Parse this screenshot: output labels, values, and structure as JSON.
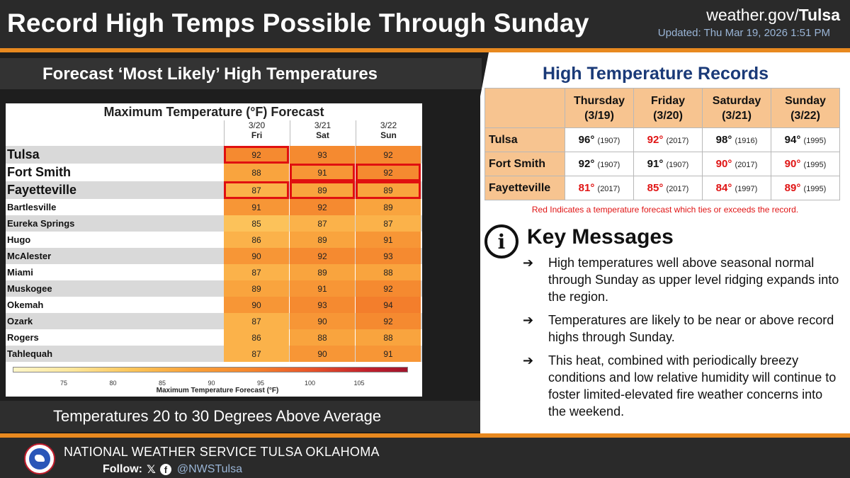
{
  "header": {
    "title": "Record High Temps Possible Through Sunday",
    "site_prefix": "weather.gov/",
    "site_office": "Tulsa",
    "updated": "Updated: Thu Mar 19, 2026 1:51 PM",
    "accent_color": "#e8891f"
  },
  "left": {
    "subtitle": "Forecast ‘Most Likely’ High Temperatures",
    "bottom_text": "Temperatures 20 to 30 Degrees Above Average"
  },
  "forecast": {
    "title": "Maximum Temperature (°F) Forecast",
    "days": [
      {
        "date": "3/20",
        "weekday": "Fri"
      },
      {
        "date": "3/21",
        "weekday": "Sat"
      },
      {
        "date": "3/22",
        "weekday": "Sun"
      }
    ],
    "rows": [
      {
        "city": "Tulsa",
        "values": [
          92,
          93,
          92
        ],
        "record": [
          true,
          false,
          false
        ],
        "size": "big"
      },
      {
        "city": "Fort Smith",
        "values": [
          88,
          91,
          92
        ],
        "record": [
          false,
          true,
          true
        ],
        "size": "big"
      },
      {
        "city": "Fayetteville",
        "values": [
          87,
          89,
          89
        ],
        "record": [
          true,
          true,
          true
        ],
        "size": "big"
      },
      {
        "city": "Bartlesville",
        "values": [
          91,
          92,
          89
        ],
        "record": [
          false,
          false,
          false
        ],
        "size": "small"
      },
      {
        "city": "Eureka Springs",
        "values": [
          85,
          87,
          87
        ],
        "record": [
          false,
          false,
          false
        ],
        "size": "small"
      },
      {
        "city": "Hugo",
        "values": [
          86,
          89,
          91
        ],
        "record": [
          false,
          false,
          false
        ],
        "size": "small"
      },
      {
        "city": "McAlester",
        "values": [
          90,
          92,
          93
        ],
        "record": [
          false,
          false,
          false
        ],
        "size": "small"
      },
      {
        "city": "Miami",
        "values": [
          87,
          89,
          88
        ],
        "record": [
          false,
          false,
          false
        ],
        "size": "small"
      },
      {
        "city": "Muskogee",
        "values": [
          89,
          91,
          92
        ],
        "record": [
          false,
          false,
          false
        ],
        "size": "small"
      },
      {
        "city": "Okemah",
        "values": [
          90,
          93,
          94
        ],
        "record": [
          false,
          false,
          false
        ],
        "size": "small"
      },
      {
        "city": "Ozark",
        "values": [
          87,
          90,
          92
        ],
        "record": [
          false,
          false,
          false
        ],
        "size": "small"
      },
      {
        "city": "Rogers",
        "values": [
          86,
          88,
          88
        ],
        "record": [
          false,
          false,
          false
        ],
        "size": "small"
      },
      {
        "city": "Tahlequah",
        "values": [
          87,
          90,
          91
        ],
        "record": [
          false,
          false,
          false
        ],
        "size": "small"
      }
    ],
    "colorbar_ticks": [
      "75",
      "80",
      "85",
      "90",
      "95",
      "100",
      "105"
    ],
    "colorbar_label": "Maximum Temperature Forecast (°F)"
  },
  "records": {
    "title": "High Temperature Records",
    "columns": [
      {
        "day": "Thursday",
        "date": "(3/19)"
      },
      {
        "day": "Friday",
        "date": "(3/20)"
      },
      {
        "day": "Saturday",
        "date": "(3/21)"
      },
      {
        "day": "Sunday",
        "date": "(3/22)"
      }
    ],
    "rows": [
      {
        "city": "Tulsa",
        "cells": [
          {
            "temp": "96°",
            "year": "(1907)",
            "red": false
          },
          {
            "temp": "92°",
            "year": "(2017)",
            "red": true
          },
          {
            "temp": "98°",
            "year": "(1916)",
            "red": false
          },
          {
            "temp": "94°",
            "year": "(1995)",
            "red": false
          }
        ]
      },
      {
        "city": "Fort Smith",
        "cells": [
          {
            "temp": "92°",
            "year": "(1907)",
            "red": false
          },
          {
            "temp": "91°",
            "year": "(1907)",
            "red": false
          },
          {
            "temp": "90°",
            "year": "(2017)",
            "red": true
          },
          {
            "temp": "90°",
            "year": "(1995)",
            "red": true
          }
        ]
      },
      {
        "city": "Fayetteville",
        "cells": [
          {
            "temp": "81°",
            "year": "(2017)",
            "red": true
          },
          {
            "temp": "85°",
            "year": "(2017)",
            "red": true
          },
          {
            "temp": "84°",
            "year": "(1997)",
            "red": true
          },
          {
            "temp": "89°",
            "year": "(1995)",
            "red": true
          }
        ]
      }
    ],
    "note": "Red Indicates a temperature forecast which ties or exceeds the record."
  },
  "key_messages": {
    "title": "Key Messages",
    "icon": "info-icon",
    "arrow": "➔",
    "items": [
      "High temperatures well above seasonal normal through Sunday as upper level ridging expands into the region.",
      "Temperatures are likely to be near or above record highs through Sunday.",
      "This heat, combined with periodically breezy conditions and low relative humidity will continue to foster limited-elevated fire weather concerns into the weekend."
    ]
  },
  "footer": {
    "office": "NATIONAL WEATHER SERVICE TULSA OKLAHOMA",
    "follow_label": "Follow:",
    "x_glyph": "𝕏",
    "fb_glyph": "f",
    "handle": "@NWSTulsa"
  }
}
